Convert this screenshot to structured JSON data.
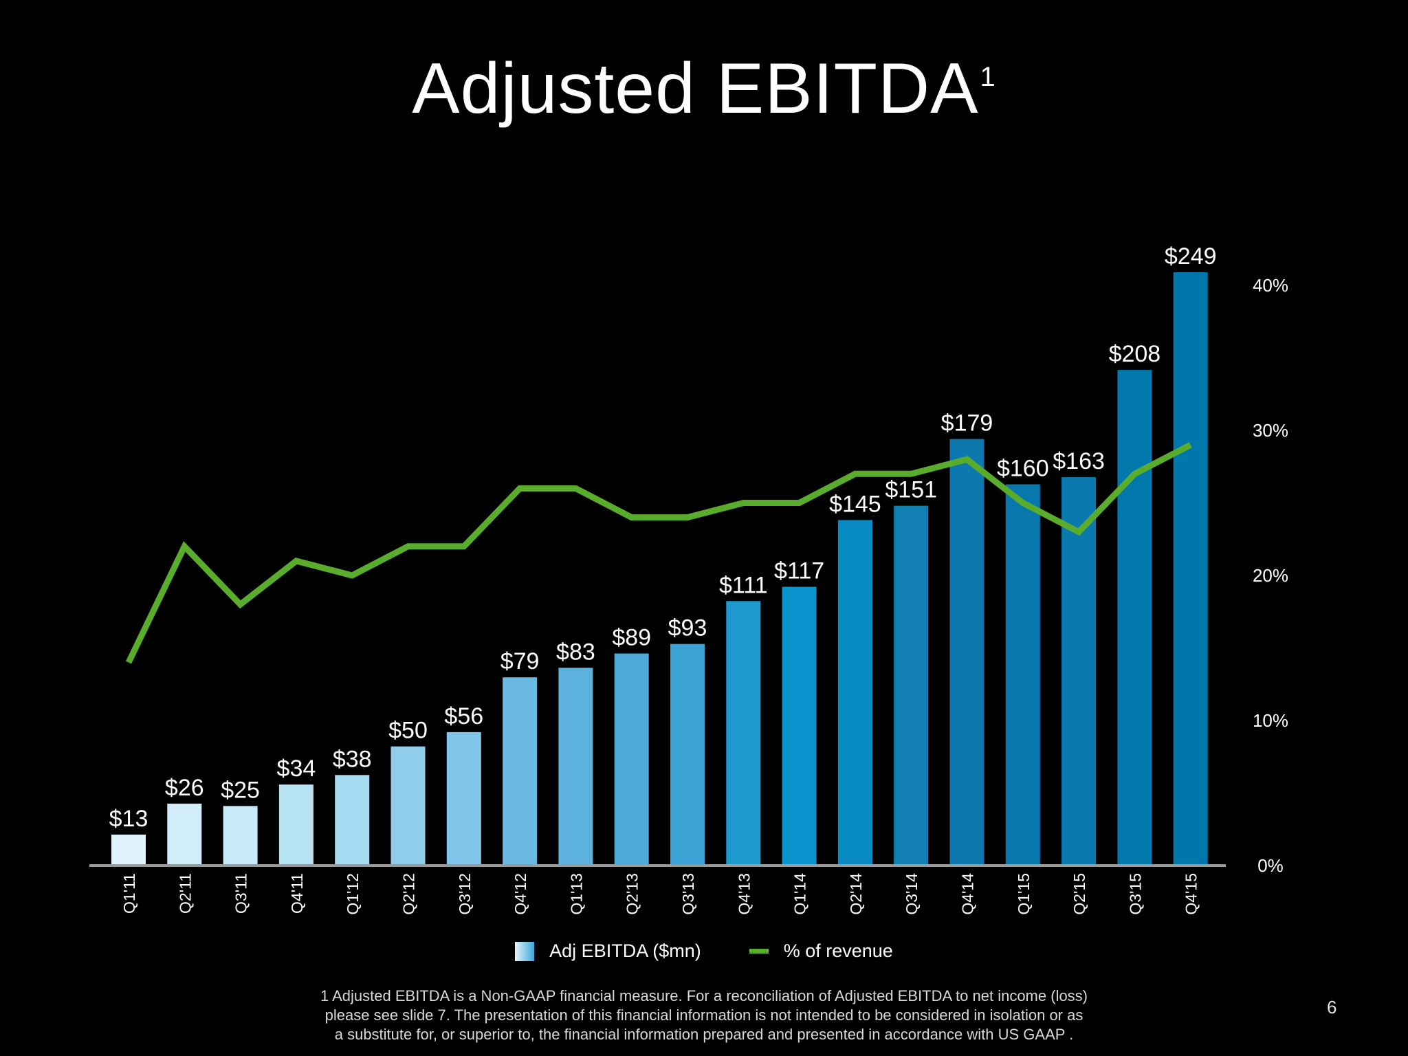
{
  "title": "Adjusted EBITDA",
  "title_superscript": "1",
  "chart_data": {
    "type": "bar+line",
    "title": "Adjusted EBITDA",
    "categories": [
      "Q1'11",
      "Q2'11",
      "Q3'11",
      "Q4'11",
      "Q1'12",
      "Q2'12",
      "Q3'12",
      "Q4'12",
      "Q1'13",
      "Q2'13",
      "Q3'13",
      "Q4'13",
      "Q1'14",
      "Q2'14",
      "Q3'14",
      "Q4'14",
      "Q1'15",
      "Q2'15",
      "Q3'15",
      "Q4'15"
    ],
    "series": [
      {
        "name": "Adj EBITDA ($mn)",
        "type": "bar",
        "values": [
          13,
          26,
          25,
          34,
          38,
          50,
          56,
          79,
          83,
          89,
          93,
          111,
          117,
          145,
          151,
          179,
          160,
          163,
          208,
          249
        ],
        "labels": [
          "$13",
          "$26",
          "$25",
          "$34",
          "$38",
          "$50",
          "$56",
          "$79",
          "$83",
          "$89",
          "$93",
          "$111",
          "$117",
          "$145",
          "$151",
          "$179",
          "$160",
          "$163",
          "$208",
          "$249"
        ],
        "colors": [
          "#dff3fc",
          "#d0edf9",
          "#c8eaf8",
          "#b6e2f4",
          "#a7dbf1",
          "#8fcdeb",
          "#7fc6e8",
          "#6ab9e2",
          "#5cb2dd",
          "#4eaad9",
          "#3aa2d5",
          "#1e9ad0",
          "#0a93cc",
          "#088bc4",
          "#127fb2",
          "#0c78ad",
          "#0877ab",
          "#0a79ad",
          "#0078ac",
          "#0077aa"
        ]
      },
      {
        "name": "% of revenue",
        "type": "line",
        "axis": "right",
        "values": [
          14,
          22,
          18,
          21,
          20,
          22,
          22,
          26,
          26,
          24,
          24,
          25,
          25,
          27,
          27,
          28,
          25,
          23,
          27,
          29
        ],
        "color": "#5aad2c"
      }
    ],
    "left_axis": {
      "ylim": [
        0,
        249
      ]
    },
    "right_axis": {
      "ylim": [
        0,
        40
      ],
      "ticks": [
        "0%",
        "10%",
        "20%",
        "30%",
        "40%"
      ]
    },
    "grid": false,
    "legend_position": "bottom-center"
  },
  "legend": {
    "bar_label": "Adj EBITDA ($mn)",
    "line_label": "% of revenue"
  },
  "footnote": [
    "1 Adjusted EBITDA is a Non-GAAP financial measure. For a reconciliation of Adjusted EBITDA to net income (loss)",
    "please see slide 7. The presentation of this financial information is not intended to be considered in isolation or as",
    "a substitute for, or superior to, the financial information prepared and presented in accordance with US GAAP ."
  ],
  "page_number": "6"
}
